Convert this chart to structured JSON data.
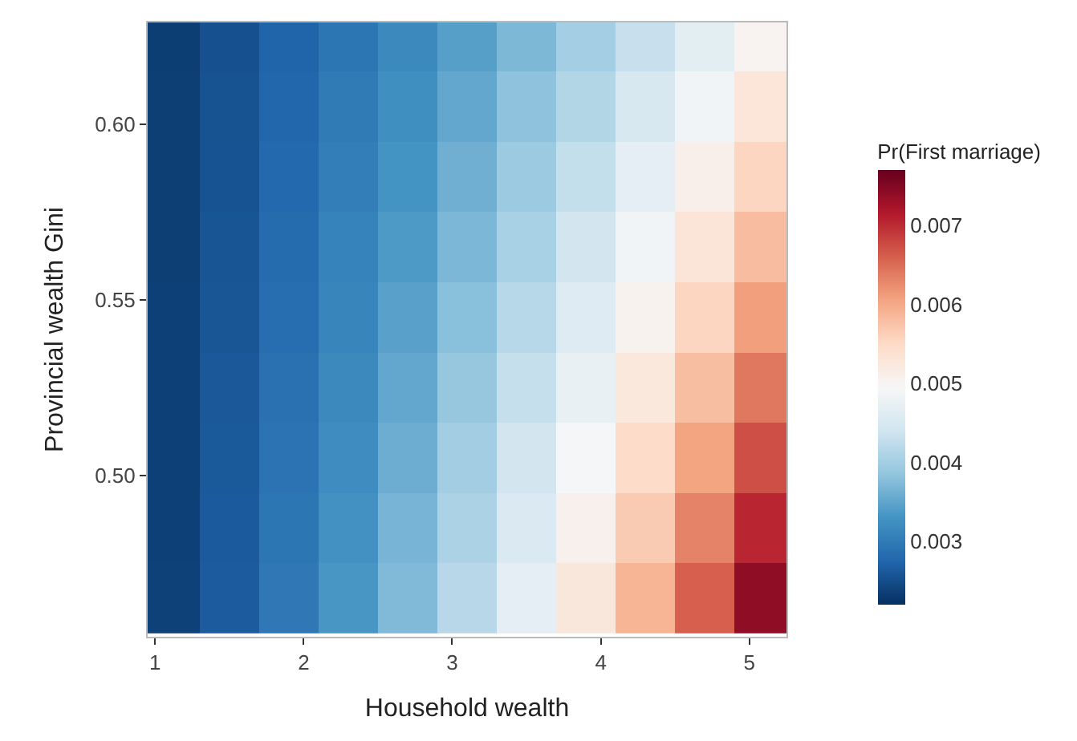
{
  "chart_data": {
    "type": "heatmap",
    "xlabel": "Household wealth",
    "ylabel": "Provincial wealth Gini",
    "clabel": "Pr(First marriage)",
    "x": [
      1.1,
      1.5,
      1.9,
      2.3,
      2.7,
      3.1,
      3.5,
      3.9,
      4.3,
      4.7,
      5.1
    ],
    "y": [
      0.625,
      0.605,
      0.585,
      0.565,
      0.545,
      0.525,
      0.505,
      0.485,
      0.465
    ],
    "cells": [
      [
        0.00234,
        0.00253,
        0.00273,
        0.00295,
        0.00318,
        0.00343,
        0.00371,
        0.004,
        0.00432,
        0.00466,
        0.00503
      ],
      [
        0.00235,
        0.00255,
        0.00276,
        0.00299,
        0.00325,
        0.00352,
        0.00382,
        0.00414,
        0.00449,
        0.00487,
        0.00529
      ],
      [
        0.00235,
        0.00256,
        0.00279,
        0.00304,
        0.00331,
        0.00361,
        0.00394,
        0.00429,
        0.00468,
        0.0051,
        0.00555
      ],
      [
        0.00235,
        0.00258,
        0.00282,
        0.00309,
        0.00338,
        0.0037,
        0.00405,
        0.00443,
        0.00485,
        0.00531,
        0.00581
      ],
      [
        0.00236,
        0.00259,
        0.00285,
        0.00313,
        0.00345,
        0.00379,
        0.00417,
        0.00459,
        0.00504,
        0.00555,
        0.0061
      ],
      [
        0.00236,
        0.00261,
        0.00288,
        0.00318,
        0.00352,
        0.00389,
        0.0043,
        0.00475,
        0.00525,
        0.0058,
        0.00641
      ],
      [
        0.00236,
        0.00262,
        0.00291,
        0.00323,
        0.00359,
        0.00399,
        0.00443,
        0.00492,
        0.00546,
        0.00606,
        0.00673
      ],
      [
        0.00236,
        0.00264,
        0.00294,
        0.00328,
        0.00366,
        0.00408,
        0.00455,
        0.00508,
        0.00566,
        0.00632,
        0.00704
      ],
      [
        0.00237,
        0.00265,
        0.00297,
        0.00333,
        0.00373,
        0.00418,
        0.00469,
        0.00526,
        0.00589,
        0.0066,
        0.0074
      ]
    ],
    "xlim": [
      0.95,
      5.25
    ],
    "xticks": [
      1,
      2,
      3,
      4,
      5
    ],
    "ylim": [
      0.454,
      0.629
    ],
    "yticks": [
      {
        "value": 0.5,
        "label": "0.50"
      },
      {
        "value": 0.55,
        "label": "0.55"
      },
      {
        "value": 0.6,
        "label": "0.60"
      }
    ],
    "clim": [
      0.0022,
      0.0077
    ],
    "cticks": [
      0.003,
      0.004,
      0.005,
      0.006,
      0.007
    ]
  }
}
